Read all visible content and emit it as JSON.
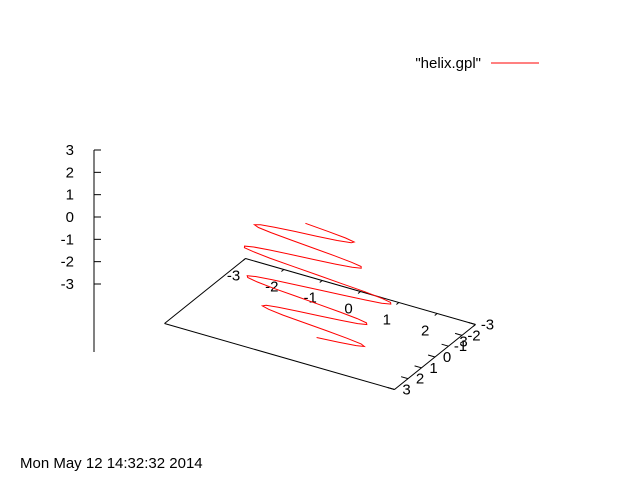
{
  "timestamp": "Mon May 12 14:32:32 2014",
  "chart_data": {
    "type": "line",
    "subtype": "3d-parametric",
    "title": "",
    "xlabel": "",
    "ylabel": "",
    "zlabel": "",
    "xlim": [
      -3,
      3
    ],
    "ylim": [
      -3,
      3
    ],
    "zlim": [
      -3,
      3
    ],
    "x_ticks": [
      "-3",
      "-2",
      "-1",
      "0",
      "1",
      "2",
      "3"
    ],
    "y_ticks": [
      "-3",
      "-2",
      "-1",
      "0",
      "1",
      "2",
      "3"
    ],
    "z_ticks": [
      "-3",
      "-2",
      "-1",
      "0",
      "1",
      "2",
      "3"
    ],
    "grid": false,
    "legend_position": "top-right",
    "series": [
      {
        "name": "\"helix.gpl\"",
        "color": "#ff0000",
        "points": [
          [
            0.03,
            0.34,
            -2.8
          ],
          [
            0.61,
            0.35,
            -2.72
          ],
          [
            1.07,
            0.36,
            -2.64
          ],
          [
            1.29,
            0.38,
            -2.56
          ],
          [
            1.21,
            0.39,
            -2.48
          ],
          [
            0.84,
            0.4,
            -2.4
          ],
          [
            0.3,
            0.41,
            -2.32
          ],
          [
            -0.28,
            0.42,
            -2.24
          ],
          [
            -0.81,
            0.44,
            -2.16
          ],
          [
            -1.18,
            0.45,
            -2.08
          ],
          [
            -1.34,
            0.46,
            -2.0
          ],
          [
            -1.24,
            0.47,
            -1.92
          ],
          [
            -0.92,
            0.48,
            -1.84
          ],
          [
            -0.4,
            0.5,
            -1.76
          ],
          [
            0.18,
            0.51,
            -1.68
          ],
          [
            0.73,
            0.52,
            -1.6
          ],
          [
            1.17,
            0.53,
            -1.52
          ],
          [
            1.41,
            0.54,
            -1.44
          ],
          [
            1.41,
            0.56,
            -1.36
          ],
          [
            1.17,
            0.57,
            -1.28
          ],
          [
            0.73,
            0.58,
            -1.2
          ],
          [
            0.16,
            0.59,
            -1.12
          ],
          [
            -0.43,
            0.6,
            -1.04
          ],
          [
            -1.0,
            0.62,
            -0.96
          ],
          [
            -1.42,
            0.63,
            -0.88
          ],
          [
            -1.66,
            0.64,
            -0.8
          ],
          [
            -1.67,
            0.65,
            -0.72
          ],
          [
            -1.45,
            0.66,
            -0.64
          ],
          [
            -1.02,
            0.68,
            -0.56
          ],
          [
            -0.43,
            0.69,
            -0.48
          ],
          [
            0.22,
            0.7,
            -0.4
          ],
          [
            0.86,
            0.71,
            -0.32
          ],
          [
            1.44,
            0.72,
            -0.24
          ],
          [
            1.87,
            0.74,
            -0.16
          ],
          [
            2.11,
            0.75,
            -0.08
          ],
          [
            2.11,
            0.76,
            0.0
          ],
          [
            1.87,
            0.77,
            0.08
          ],
          [
            1.44,
            0.78,
            0.16
          ],
          [
            0.86,
            0.8,
            0.24
          ],
          [
            0.22,
            0.81,
            0.32
          ],
          [
            -0.43,
            0.82,
            0.4
          ],
          [
            -1.02,
            0.83,
            0.48
          ],
          [
            -1.45,
            0.84,
            0.56
          ],
          [
            -1.67,
            0.86,
            0.64
          ],
          [
            -1.66,
            0.87,
            0.72
          ],
          [
            -1.42,
            0.88,
            0.8
          ],
          [
            -1.0,
            0.89,
            0.88
          ],
          [
            -0.43,
            0.9,
            0.96
          ],
          [
            0.16,
            0.92,
            1.04
          ],
          [
            0.73,
            0.93,
            1.12
          ],
          [
            1.17,
            0.94,
            1.2
          ],
          [
            1.41,
            0.95,
            1.28
          ],
          [
            1.41,
            0.96,
            1.36
          ],
          [
            1.17,
            0.98,
            1.44
          ],
          [
            0.73,
            0.99,
            1.52
          ],
          [
            0.18,
            1.0,
            1.6
          ],
          [
            -0.4,
            1.01,
            1.68
          ],
          [
            -0.92,
            1.02,
            1.76
          ],
          [
            -1.24,
            1.04,
            1.84
          ],
          [
            -1.34,
            1.05,
            1.92
          ],
          [
            -1.18,
            1.06,
            2.0
          ],
          [
            -0.81,
            1.07,
            2.08
          ],
          [
            -0.28,
            1.08,
            2.16
          ],
          [
            0.3,
            1.1,
            2.24
          ],
          [
            0.84,
            1.11,
            2.32
          ],
          [
            1.21,
            1.12,
            2.4
          ],
          [
            1.29,
            1.13,
            2.48
          ],
          [
            1.07,
            1.14,
            2.56
          ],
          [
            0.61,
            1.16,
            2.64
          ],
          [
            0.03,
            1.17,
            2.72
          ]
        ]
      }
    ]
  }
}
